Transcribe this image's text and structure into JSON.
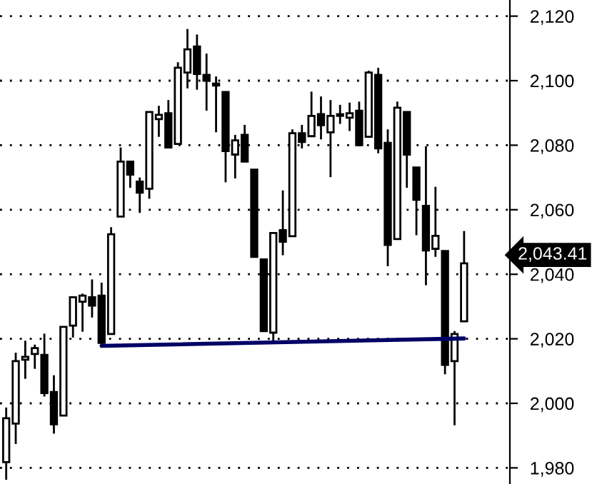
{
  "chart_data": {
    "type": "candlestick",
    "categories": [
      null,
      null,
      null,
      null,
      null,
      null,
      null,
      null,
      null,
      null,
      null,
      null,
      null,
      null,
      null,
      null,
      null,
      null,
      null,
      null,
      null,
      null,
      null,
      null,
      null,
      null,
      null,
      null,
      null,
      null,
      null,
      null,
      null,
      null,
      null,
      null,
      null,
      null,
      null,
      null,
      null,
      null,
      null,
      null,
      null,
      null,
      null,
      null,
      null
    ],
    "ohlc": [
      [
        1981.8,
        1998.7,
        1976.3,
        1995.4
      ],
      [
        1993.7,
        2015.7,
        1987.4,
        2013.1
      ],
      [
        2013.5,
        2019.4,
        2007.6,
        2014.4
      ],
      [
        2015.3,
        2018.2,
        2010.7,
        2017.1
      ],
      [
        2015.0,
        2021.6,
        2002.1,
        2003.2
      ],
      [
        2003.5,
        2008.7,
        1990.6,
        1993.5
      ],
      [
        1996.2,
        2023.7,
        1996.2,
        2023.7
      ],
      [
        2024.1,
        2032.9,
        2020.4,
        2032.9
      ],
      [
        2031.5,
        2034.0,
        2022.2,
        2033.4
      ],
      [
        2032.9,
        2038.4,
        2026.6,
        2030.3
      ],
      [
        2033.4,
        2037.4,
        2017.8,
        2018.7
      ],
      [
        2021.5,
        2054.6,
        2021.5,
        2052.4
      ],
      [
        2057.9,
        2079.3,
        2057.9,
        2074.9
      ],
      [
        2074.9,
        2074.9,
        2066.8,
        2070.9
      ],
      [
        2068.7,
        2070.0,
        2059.0,
        2065.3
      ],
      [
        2066.5,
        2090.3,
        2063.4,
        2090.3
      ],
      [
        2088.1,
        2092.2,
        2082.6,
        2089.4
      ],
      [
        2089.9,
        2094.0,
        2079.3,
        2079.3
      ],
      [
        2080.4,
        2105.7,
        2080.4,
        2104.0
      ],
      [
        2102.5,
        2116.0,
        2097.6,
        2109.7
      ],
      [
        2110.6,
        2114.3,
        2097.2,
        2102.1
      ],
      [
        2101.8,
        2108.4,
        2090.7,
        2100.0
      ],
      [
        2099.1,
        2101.3,
        2084.0,
        2098.5
      ],
      [
        2096.5,
        2096.5,
        2068.5,
        2078.2
      ],
      [
        2077.1,
        2083.2,
        2069.7,
        2081.5
      ],
      [
        2083.2,
        2086.3,
        2074.9,
        2074.9
      ],
      [
        2072.4,
        2072.4,
        2045.4,
        2045.4
      ],
      [
        2044.6,
        2044.6,
        2022.4,
        2022.4
      ],
      [
        2021.9,
        2052.8,
        2019.3,
        2052.8
      ],
      [
        2053.7,
        2066.0,
        2045.9,
        2050.1
      ],
      [
        2051.8,
        2084.9,
        2051.8,
        2083.7
      ],
      [
        2083.7,
        2086.3,
        2079.0,
        2081.0
      ],
      [
        2082.8,
        2096.6,
        2082.8,
        2089.1
      ],
      [
        2089.6,
        2095.1,
        2081.8,
        2086.2
      ],
      [
        2084.0,
        2094.0,
        2070.1,
        2089.1
      ],
      [
        2089.1,
        2092.5,
        2086.6,
        2089.6
      ],
      [
        2088.5,
        2093.2,
        2084.4,
        2089.9
      ],
      [
        2090.7,
        2093.5,
        2079.7,
        2080.0
      ],
      [
        2082.6,
        2103.1,
        2082.6,
        2102.5
      ],
      [
        2101.8,
        2104.0,
        2077.5,
        2079.0
      ],
      [
        2080.7,
        2084.9,
        2042.5,
        2049.1
      ],
      [
        2050.9,
        2093.5,
        2050.9,
        2091.6
      ],
      [
        2090.3,
        2090.3,
        2066.8,
        2077.1
      ],
      [
        2073.1,
        2073.1,
        2052.1,
        2063.1
      ],
      [
        2061.2,
        2079.7,
        2036.6,
        2047.4
      ],
      [
        2047.9,
        2067.1,
        2045.4,
        2051.9
      ],
      [
        2047.2,
        2047.2,
        2009.0,
        2011.9
      ],
      [
        2013.1,
        2022.4,
        1993.2,
        2021.5
      ],
      [
        2025.4,
        2053.4,
        2025.4,
        2043.41
      ]
    ],
    "series": [
      {
        "type": "line",
        "color": "#000066",
        "values": [
          null,
          null,
          null,
          null,
          null,
          null,
          null,
          null,
          null,
          null,
          2017.8,
          null,
          null,
          null,
          null,
          null,
          null,
          null,
          null,
          null,
          null,
          null,
          null,
          null,
          null,
          null,
          null,
          null,
          null,
          null,
          null,
          null,
          null,
          null,
          null,
          null,
          null,
          null,
          null,
          null,
          null,
          null,
          null,
          null,
          null,
          null,
          null,
          null,
          2020.1
        ]
      }
    ],
    "annotations": [
      "2,043.41"
    ],
    "ylim": [
      1975,
      2125
    ],
    "yticks": [
      {
        "value": 1980,
        "label": "1,980"
      },
      {
        "value": 2000,
        "label": "2,000"
      },
      {
        "value": 2020,
        "label": "2,020"
      },
      {
        "value": 2040,
        "label": "2,040"
      },
      {
        "value": 2060,
        "label": "2,060"
      },
      {
        "value": 2080,
        "label": "2,080"
      },
      {
        "value": 2100,
        "label": "2,100"
      },
      {
        "value": 2120,
        "label": "2,120"
      }
    ],
    "grid": "y",
    "tick_labels": "y"
  }
}
